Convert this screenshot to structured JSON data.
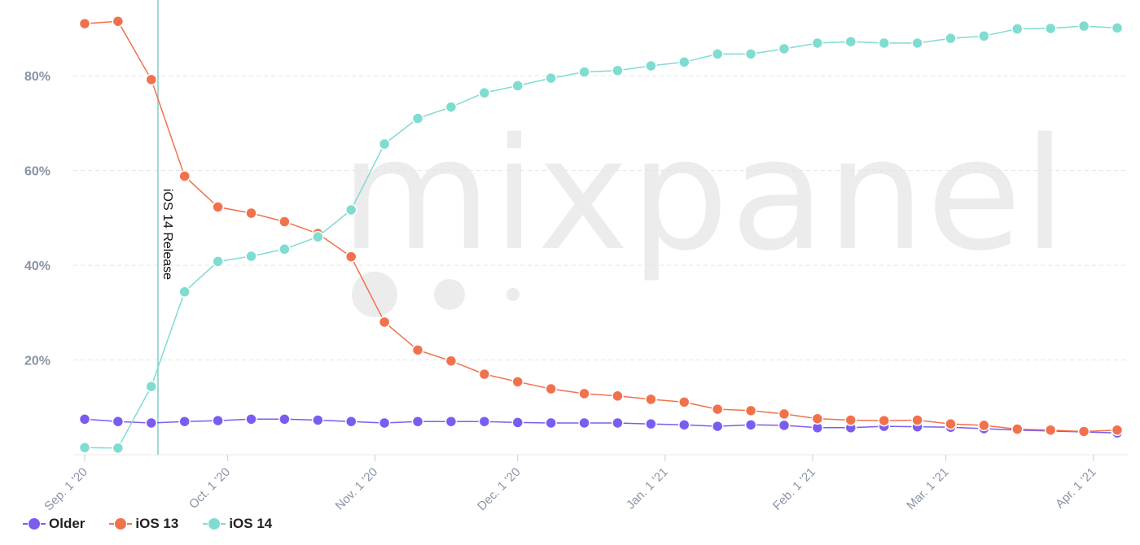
{
  "watermark": "mixpanel",
  "chart_data": {
    "type": "line",
    "x": [
      "Sep. 1 '20",
      "Sep. 8 '20",
      "Sep. 15 '20",
      "Sep. 22 '20",
      "Sep. 29 '20",
      "Oct. 6 '20",
      "Oct. 13 '20",
      "Oct. 20 '20",
      "Oct. 27 '20",
      "Nov. 3 '20",
      "Nov. 10 '20",
      "Nov. 17 '20",
      "Nov. 24 '20",
      "Dec. 1 '20",
      "Dec. 8 '20",
      "Dec. 15 '20",
      "Dec. 22 '20",
      "Dec. 29 '20",
      "Jan. 5 '21",
      "Jan. 12 '21",
      "Jan. 19 '21",
      "Jan. 26 '21",
      "Feb. 2 '21",
      "Feb. 9 '21",
      "Feb. 16 '21",
      "Feb. 23 '21",
      "Mar. 2 '21",
      "Mar. 9 '21",
      "Mar. 16 '21",
      "Mar. 23 '21",
      "Mar. 30 '21",
      "Apr. 6 '21"
    ],
    "series": [
      {
        "name": "Older",
        "color": "#7b5cf0",
        "values": [
          7.5,
          7.0,
          6.7,
          7.0,
          7.2,
          7.5,
          7.5,
          7.3,
          7.0,
          6.7,
          7.0,
          7.0,
          7.0,
          6.8,
          6.7,
          6.7,
          6.7,
          6.5,
          6.3,
          6.0,
          6.3,
          6.2,
          5.7,
          5.7,
          6.0,
          5.9,
          5.8,
          5.5,
          5.2,
          5.0,
          4.8,
          4.6
        ]
      },
      {
        "name": "iOS 13",
        "color": "#f2714d",
        "values": [
          91.0,
          91.5,
          79.2,
          58.8,
          52.3,
          51.0,
          49.2,
          46.7,
          41.8,
          28.0,
          22.1,
          19.8,
          17.0,
          15.4,
          13.9,
          12.9,
          12.4,
          11.7,
          11.1,
          9.6,
          9.3,
          8.6,
          7.6,
          7.3,
          7.2,
          7.3,
          6.5,
          6.2,
          5.4,
          5.2,
          4.9,
          5.2
        ]
      },
      {
        "name": "iOS 14",
        "color": "#7fdcd0",
        "values": [
          1.5,
          1.4,
          14.4,
          34.4,
          40.8,
          41.9,
          43.4,
          46.0,
          51.7,
          65.6,
          71.0,
          73.4,
          76.4,
          77.9,
          79.5,
          80.8,
          81.1,
          82.1,
          82.9,
          84.6,
          84.6,
          85.7,
          86.9,
          87.2,
          86.9,
          86.9,
          87.9,
          88.4,
          89.9,
          90.0,
          90.5,
          90.1
        ]
      }
    ],
    "yticks": [
      20,
      40,
      60,
      80
    ],
    "ytick_labels": [
      "20%",
      "40%",
      "60%",
      "80%"
    ],
    "ylim": [
      0,
      96
    ],
    "xtick_labels": [
      {
        "label": "Sep. 1 '20",
        "pos": 0
      },
      {
        "label": "Oct. 1 '20",
        "pos": 4.2857
      },
      {
        "label": "Nov. 1 '20",
        "pos": 8.7143
      },
      {
        "label": "Dec. 1 '20",
        "pos": 13
      },
      {
        "label": "Jan. 1 '21",
        "pos": 17.4286
      },
      {
        "label": "Feb. 1 '21",
        "pos": 21.8571
      },
      {
        "label": "Mar. 1 '21",
        "pos": 25.8571
      },
      {
        "label": "Apr. 1 '21",
        "pos": 30.2857
      }
    ],
    "annotation": {
      "label": "iOS 14 Release",
      "pos": 2.2
    }
  }
}
